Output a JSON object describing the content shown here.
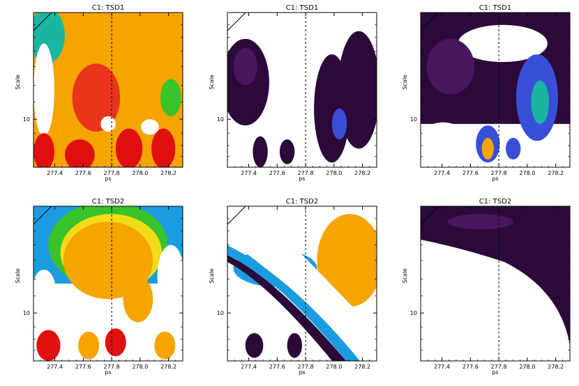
{
  "figure": {
    "rows": 2,
    "cols": 3
  },
  "chart_data": [
    {
      "type": "heatmap",
      "title": "C1: TSD1",
      "xlabel": "ps",
      "ylabel": "Scale",
      "x_ticks": [
        "277.4",
        "277.6",
        "277.8",
        "278.0",
        "278.2"
      ],
      "y_ticks": [
        "10"
      ],
      "xlim": [
        277.25,
        278.3
      ],
      "marker_line_x": 277.8,
      "colormap": "black-purple-blue-cyan-green-yellow-orange-red",
      "background": "white",
      "pattern": "high power (orange/red) across most of the panel with vertical red lobes near small scales",
      "regions": [
        {
          "shape": "rect",
          "x0": 0.0,
          "y0": 0.0,
          "x1": 1.0,
          "y1": 1.0,
          "color": "#f5a400"
        },
        {
          "shape": "ellipse",
          "cx": 0.42,
          "cy": 0.55,
          "rx": 0.16,
          "ry": 0.22,
          "color": "#e8341c"
        },
        {
          "shape": "ellipse",
          "cx": 0.09,
          "cy": 0.15,
          "rx": 0.12,
          "ry": 0.18,
          "color": "#19b7a2"
        },
        {
          "shape": "ellipse",
          "cx": 0.07,
          "cy": 0.5,
          "rx": 0.07,
          "ry": 0.3,
          "color": "#ffffff"
        },
        {
          "shape": "ellipse",
          "cx": 0.92,
          "cy": 0.55,
          "rx": 0.07,
          "ry": 0.12,
          "color": "#39c22a"
        },
        {
          "shape": "ellipse",
          "cx": 0.07,
          "cy": 0.9,
          "rx": 0.07,
          "ry": 0.12,
          "color": "#e01010"
        },
        {
          "shape": "ellipse",
          "cx": 0.31,
          "cy": 0.92,
          "rx": 0.1,
          "ry": 0.1,
          "color": "#e01010"
        },
        {
          "shape": "ellipse",
          "cx": 0.64,
          "cy": 0.88,
          "rx": 0.09,
          "ry": 0.13,
          "color": "#e01010"
        },
        {
          "shape": "ellipse",
          "cx": 0.87,
          "cy": 0.88,
          "rx": 0.08,
          "ry": 0.13,
          "color": "#e01010"
        },
        {
          "shape": "ellipse",
          "cx": 0.5,
          "cy": 0.72,
          "rx": 0.05,
          "ry": 0.05,
          "color": "#ffffff"
        },
        {
          "shape": "ellipse",
          "cx": 0.78,
          "cy": 0.74,
          "rx": 0.06,
          "ry": 0.05,
          "color": "#ffffff"
        }
      ]
    },
    {
      "type": "heatmap",
      "title": "C1: TSD1",
      "xlabel": "ps",
      "ylabel": "Scale",
      "x_ticks": [
        "277.4",
        "277.6",
        "277.8",
        "278.0",
        "278.2"
      ],
      "y_ticks": [
        "10"
      ],
      "xlim": [
        277.25,
        278.3
      ],
      "marker_line_x": 277.8,
      "colormap": "black-purple-blue-cyan-green-yellow-orange-red",
      "background": "white",
      "pattern": "low power: dark purple lobes on white background",
      "regions": [
        {
          "shape": "ellipse",
          "cx": 0.12,
          "cy": 0.45,
          "rx": 0.16,
          "ry": 0.28,
          "color": "#2b0a3a"
        },
        {
          "shape": "ellipse",
          "cx": 0.12,
          "cy": 0.35,
          "rx": 0.08,
          "ry": 0.12,
          "color": "#4a1660"
        },
        {
          "shape": "ellipse",
          "cx": 0.7,
          "cy": 0.62,
          "rx": 0.12,
          "ry": 0.35,
          "color": "#2b0a3a"
        },
        {
          "shape": "ellipse",
          "cx": 0.88,
          "cy": 0.5,
          "rx": 0.14,
          "ry": 0.38,
          "color": "#2b0a3a"
        },
        {
          "shape": "ellipse",
          "cx": 0.75,
          "cy": 0.72,
          "rx": 0.05,
          "ry": 0.1,
          "color": "#3a4fd8"
        },
        {
          "shape": "ellipse",
          "cx": 0.22,
          "cy": 0.9,
          "rx": 0.05,
          "ry": 0.1,
          "color": "#2b0a3a"
        },
        {
          "shape": "ellipse",
          "cx": 0.4,
          "cy": 0.9,
          "rx": 0.05,
          "ry": 0.08,
          "color": "#2b0a3a"
        }
      ]
    },
    {
      "type": "heatmap",
      "title": "C1: TSD1",
      "xlabel": "ps",
      "ylabel": "Scale",
      "x_ticks": [
        "277.4",
        "277.6",
        "277.8",
        "278.0",
        "278.2"
      ],
      "y_ticks": [
        "10"
      ],
      "xlim": [
        277.25,
        278.3
      ],
      "marker_line_x": 277.8,
      "colormap": "black-purple-blue-cyan-green-yellow-orange-red",
      "background": "white",
      "pattern": "mostly dark purple with blue lobes and a small orange spot near the dashed line at small scales",
      "regions": [
        {
          "shape": "rect",
          "x0": 0.0,
          "y0": 0.0,
          "x1": 1.0,
          "y1": 0.72,
          "color": "#2b0a3a"
        },
        {
          "shape": "ellipse",
          "cx": 0.55,
          "cy": 0.2,
          "rx": 0.3,
          "ry": 0.12,
          "color": "#ffffff"
        },
        {
          "shape": "ellipse",
          "cx": 0.2,
          "cy": 0.35,
          "rx": 0.16,
          "ry": 0.18,
          "color": "#4a1660"
        },
        {
          "shape": "ellipse",
          "cx": 0.78,
          "cy": 0.55,
          "rx": 0.14,
          "ry": 0.28,
          "color": "#3a4fd8"
        },
        {
          "shape": "ellipse",
          "cx": 0.8,
          "cy": 0.58,
          "rx": 0.06,
          "ry": 0.14,
          "color": "#19b7a2"
        },
        {
          "shape": "ellipse",
          "cx": 0.15,
          "cy": 0.85,
          "rx": 0.18,
          "ry": 0.14,
          "color": "#ffffff"
        },
        {
          "shape": "ellipse",
          "cx": 0.45,
          "cy": 0.85,
          "rx": 0.08,
          "ry": 0.12,
          "color": "#3a4fd8"
        },
        {
          "shape": "ellipse",
          "cx": 0.45,
          "cy": 0.88,
          "rx": 0.04,
          "ry": 0.07,
          "color": "#f5a400"
        },
        {
          "shape": "ellipse",
          "cx": 0.62,
          "cy": 0.88,
          "rx": 0.05,
          "ry": 0.07,
          "color": "#3a4fd8"
        }
      ]
    },
    {
      "type": "heatmap",
      "title": "C1: TSD2",
      "xlabel": "ps",
      "ylabel": "Scale",
      "x_ticks": [
        "277.4",
        "277.6",
        "277.8",
        "278.0",
        "278.2"
      ],
      "y_ticks": [
        "10"
      ],
      "xlim": [
        277.25,
        278.3
      ],
      "marker_line_x": 277.8,
      "colormap": "black-purple-blue-cyan-green-yellow-orange-red",
      "background": "white",
      "pattern": "broad orange power region framed by cyan/green/blue/purple contours with arched lobes at small scales",
      "regions": [
        {
          "shape": "rect",
          "x0": 0.0,
          "y0": 0.0,
          "x1": 1.0,
          "y1": 0.5,
          "color": "#1c9ce0"
        },
        {
          "shape": "ellipse",
          "cx": 0.5,
          "cy": 0.25,
          "rx": 0.4,
          "ry": 0.28,
          "color": "#39c22a"
        },
        {
          "shape": "ellipse",
          "cx": 0.52,
          "cy": 0.3,
          "rx": 0.34,
          "ry": 0.25,
          "color": "#f2dc1a"
        },
        {
          "shape": "ellipse",
          "cx": 0.5,
          "cy": 0.35,
          "rx": 0.3,
          "ry": 0.25,
          "color": "#f5a400"
        },
        {
          "shape": "ellipse",
          "cx": 0.7,
          "cy": 0.6,
          "rx": 0.1,
          "ry": 0.15,
          "color": "#f5a400"
        },
        {
          "shape": "ellipse",
          "cx": 0.07,
          "cy": 0.55,
          "rx": 0.08,
          "ry": 0.14,
          "color": "#ffffff"
        },
        {
          "shape": "ellipse",
          "cx": 0.92,
          "cy": 0.45,
          "rx": 0.09,
          "ry": 0.2,
          "color": "#ffffff"
        },
        {
          "shape": "ellipse",
          "cx": 0.1,
          "cy": 0.9,
          "rx": 0.08,
          "ry": 0.1,
          "color": "#e01010"
        },
        {
          "shape": "ellipse",
          "cx": 0.37,
          "cy": 0.9,
          "rx": 0.07,
          "ry": 0.09,
          "color": "#f5a400"
        },
        {
          "shape": "ellipse",
          "cx": 0.55,
          "cy": 0.88,
          "rx": 0.07,
          "ry": 0.09,
          "color": "#e01010"
        },
        {
          "shape": "ellipse",
          "cx": 0.88,
          "cy": 0.9,
          "rx": 0.07,
          "ry": 0.09,
          "color": "#f5a400"
        }
      ]
    },
    {
      "type": "heatmap",
      "title": "C1: TSD2",
      "xlabel": "ps",
      "ylabel": "Scale",
      "x_ticks": [
        "277.4",
        "277.6",
        "277.8",
        "278.0",
        "278.2"
      ],
      "y_ticks": [
        "10"
      ],
      "xlim": [
        277.25,
        278.3
      ],
      "marker_line_x": 277.8,
      "colormap": "black-purple-blue-cyan-green-yellow-orange-red",
      "background": "white",
      "pattern": "diagonal banded ridge from upper-left to lower-right; cyan/green band with orange power to the upper right",
      "regions": [
        {
          "shape": "ellipse",
          "cx": 0.82,
          "cy": 0.35,
          "rx": 0.22,
          "ry": 0.3,
          "color": "#f5a400"
        },
        {
          "shape": "ellipse",
          "cx": 0.32,
          "cy": 0.4,
          "rx": 0.28,
          "ry": 0.12,
          "color": "#1c9ce0"
        },
        {
          "shape": "ellipse",
          "cx": 0.32,
          "cy": 0.4,
          "rx": 0.12,
          "ry": 0.05,
          "color": "#19b7a2"
        },
        {
          "shape": "ellipse",
          "cx": 0.18,
          "cy": 0.9,
          "rx": 0.06,
          "ry": 0.08,
          "color": "#2b0a3a"
        },
        {
          "shape": "ellipse",
          "cx": 0.45,
          "cy": 0.9,
          "rx": 0.05,
          "ry": 0.08,
          "color": "#2b0a3a"
        }
      ]
    },
    {
      "type": "heatmap",
      "title": "C1: TSD2",
      "xlabel": "ps",
      "ylabel": "Scale",
      "x_ticks": [
        "277.4",
        "277.6",
        "277.8",
        "278.0",
        "278.2"
      ],
      "y_ticks": [
        "10"
      ],
      "xlim": [
        277.25,
        278.3
      ],
      "marker_line_x": 277.8,
      "colormap": "black-purple-blue-cyan-green-yellow-orange-red",
      "background": "white",
      "pattern": "a dark purple band across the top curving down to the right; rest of panel white",
      "regions": [
        {
          "shape": "ellipse",
          "cx": 0.45,
          "cy": 0.12,
          "rx": 0.18,
          "ry": 0.06,
          "color": "#4a1660"
        }
      ]
    }
  ]
}
